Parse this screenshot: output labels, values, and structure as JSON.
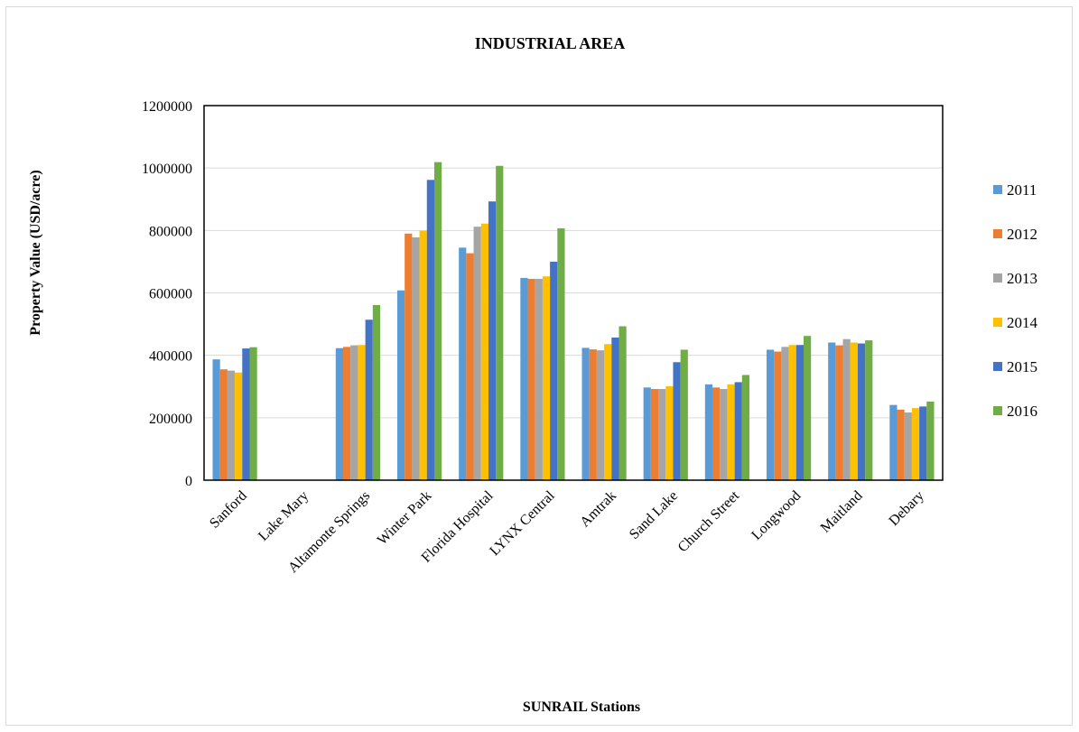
{
  "chart_data": {
    "type": "bar",
    "title": "INDUSTRIAL AREA",
    "xlabel": "SUNRAIL Stations",
    "ylabel": "Property Value (USD/acre)",
    "ylim": [
      0,
      1200000
    ],
    "yticks": [
      "0",
      "200000",
      "400000",
      "600000",
      "800000",
      "1000000",
      "1200000"
    ],
    "grid": true,
    "legend_position": "right",
    "categories": [
      "Sanford",
      "Lake Mary",
      "Altamonte Springs",
      "Winter Park",
      "Florida Hospital",
      "LYNX Central",
      "Amtrak",
      "Sand Lake",
      "Church Street",
      "Longwood",
      "Maitland",
      "Debary"
    ],
    "series": [
      {
        "name": "2011",
        "color": "#5b9bd5",
        "values": [
          387000,
          0,
          423000,
          608000,
          745000,
          648000,
          424000,
          297000,
          307000,
          418000,
          441000,
          241000
        ]
      },
      {
        "name": "2012",
        "color": "#ed7d31",
        "values": [
          355000,
          0,
          427000,
          790000,
          727000,
          645000,
          419000,
          292000,
          297000,
          412000,
          432000,
          226000
        ]
      },
      {
        "name": "2013",
        "color": "#a5a5a5",
        "values": [
          351000,
          0,
          432000,
          778000,
          812000,
          645000,
          416000,
          292000,
          292000,
          427000,
          452000,
          217000
        ]
      },
      {
        "name": "2014",
        "color": "#ffc000",
        "values": [
          345000,
          0,
          433000,
          799000,
          822000,
          653000,
          436000,
          301000,
          307000,
          433000,
          441000,
          231000
        ]
      },
      {
        "name": "2015",
        "color": "#4472c4",
        "values": [
          422000,
          0,
          514000,
          962000,
          893000,
          700000,
          457000,
          378000,
          314000,
          433000,
          438000,
          236000
        ]
      },
      {
        "name": "2016",
        "color": "#70ad47",
        "values": [
          426000,
          0,
          561000,
          1019000,
          1007000,
          807000,
          493000,
          418000,
          337000,
          462000,
          448000,
          252000
        ]
      }
    ]
  }
}
